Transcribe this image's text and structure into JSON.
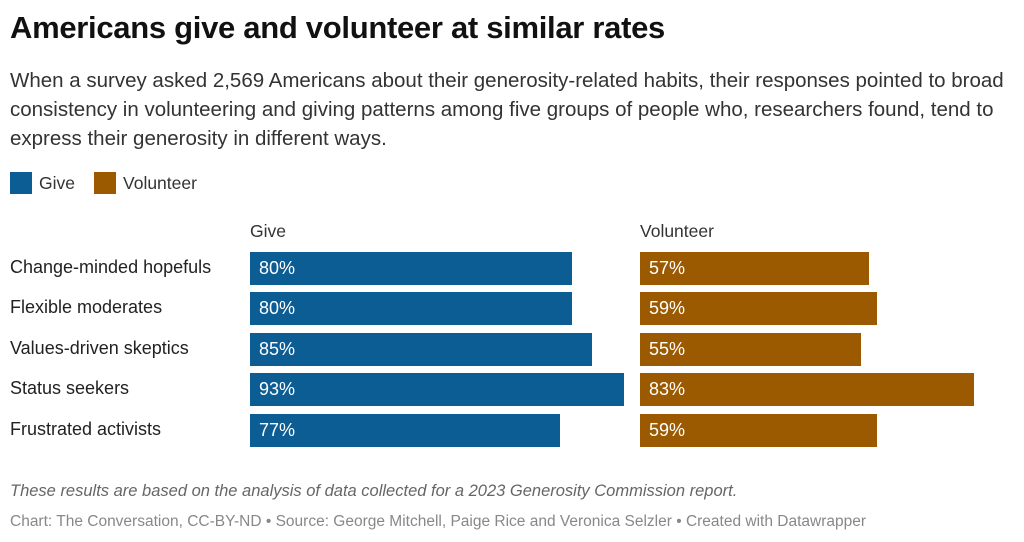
{
  "title": "Americans give and volunteer at similar rates",
  "subtitle": "When a survey asked 2,569 Americans about their generosity-related habits, their responses pointed to broad consistency in volunteering and giving patterns among five groups of people who, researchers found, tend to express their generosity in different ways.",
  "note": "These results are based on the analysis of data collected for a 2023 Generosity Commission report.",
  "credit": "Chart: The Conversation, CC-BY-ND • Source: George Mitchell, Paige Rice and Veronica Selzler • Created with Datawrapper",
  "chart_data": {
    "type": "bar",
    "orientation": "horizontal",
    "categories": [
      "Change-minded hopefuls",
      "Flexible moderates",
      "Values-driven skeptics",
      "Status seekers",
      "Frustrated activists"
    ],
    "series": [
      {
        "name": "Give",
        "color": "#0b5d93",
        "values": [
          80,
          80,
          85,
          93,
          77
        ],
        "labels": [
          "80%",
          "80%",
          "85%",
          "93%",
          "77%"
        ]
      },
      {
        "name": "Volunteer",
        "color": "#9b5a00",
        "values": [
          57,
          59,
          55,
          83,
          59
        ],
        "labels": [
          "57%",
          "59%",
          "55%",
          "83%",
          "59%"
        ]
      }
    ],
    "xlim": [
      0,
      100
    ],
    "legend": "top-left",
    "grid": false
  }
}
